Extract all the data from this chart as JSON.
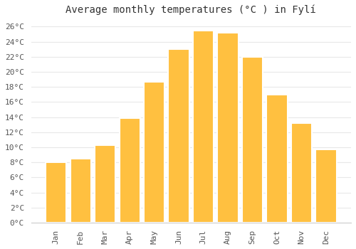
{
  "title": "Average monthly temperatures (°C ) in Fylí",
  "months": [
    "Jan",
    "Feb",
    "Mar",
    "Apr",
    "May",
    "Jun",
    "Jul",
    "Aug",
    "Sep",
    "Oct",
    "Nov",
    "Dec"
  ],
  "temperatures": [
    8.0,
    8.5,
    10.3,
    13.9,
    18.7,
    23.0,
    25.5,
    25.2,
    22.0,
    17.0,
    13.2,
    9.7
  ],
  "bar_color_top": "#FFC040",
  "bar_color_bottom": "#FFB020",
  "bar_edge_color": "#FFFFFF",
  "ylim": [
    0,
    27
  ],
  "yticks": [
    0,
    2,
    4,
    6,
    8,
    10,
    12,
    14,
    16,
    18,
    20,
    22,
    24,
    26
  ],
  "background_color": "#FFFFFF",
  "grid_color": "#e8e8e8",
  "title_fontsize": 10,
  "tick_fontsize": 8,
  "font_family": "monospace",
  "bar_width": 0.85
}
